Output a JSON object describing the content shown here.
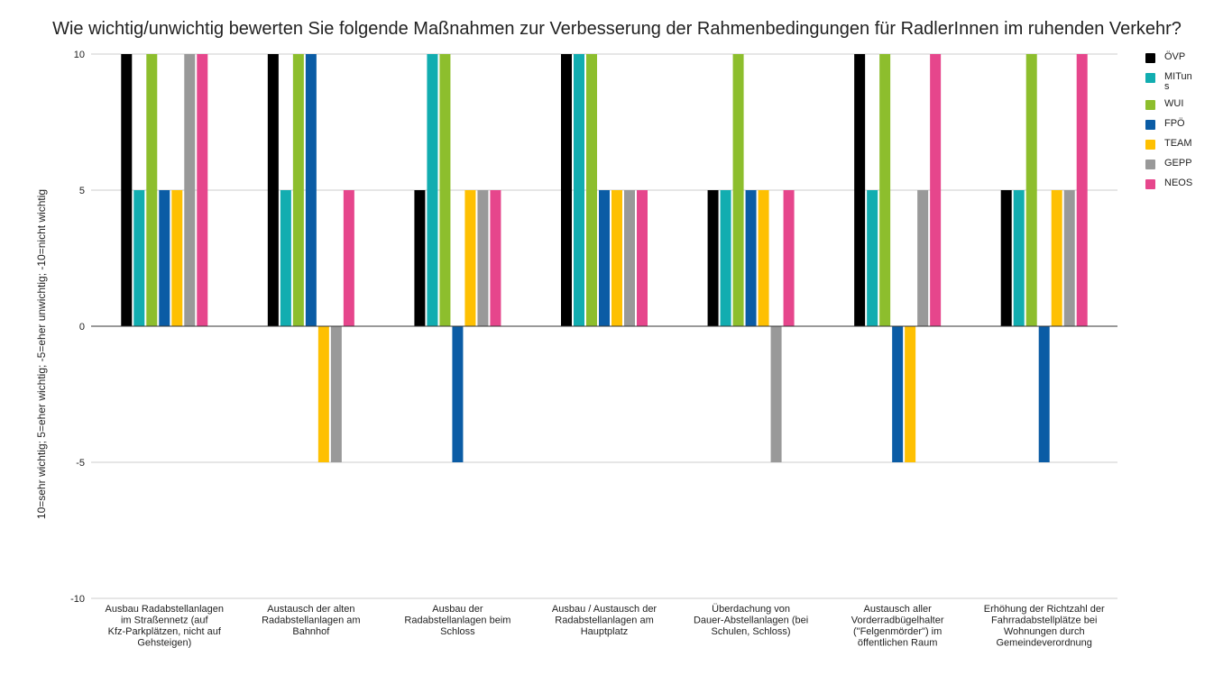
{
  "chart_data": {
    "type": "bar",
    "title": "Wie wichtig/unwichtig bewerten Sie folgende Maßnahmen zur Verbesserung der Rahmenbedingungen für RadlerInnen im ruhenden Verkehr?",
    "xlabel": "",
    "ylabel": "10=sehr wichtig; 5=eher wichtig; -5=eher unwichtig; -10=nicht wichtig",
    "ylim": [
      -10,
      10
    ],
    "yticks": [
      "10",
      "5",
      "0",
      "-5",
      "-10"
    ],
    "grid": true,
    "legend_position": "right",
    "categories": [
      "Ausbau Radabstellanlagen im Straßennetz (auf Kfz-Parkplätzen, nicht auf Gehsteigen)",
      "Austausch der alten Radabstellanlagen am Bahnhof",
      "Ausbau der Radabstellanlagen beim Schloss",
      "Ausbau / Austausch der Radabstellanlagen am Hauptplatz",
      "Überdachung von Dauer-Abstellanlagen (bei Schulen, Schloss)",
      "Austausch aller Vorderradbügelhalter (\"Felgenmörder\") im öffentlichen Raum",
      "Erhöhung der Richtzahl der Fahrradabstellplätze bei Wohnungen durch Gemeindeverordnung"
    ],
    "series": [
      {
        "name": "ÖVP",
        "color": "#000000",
        "values": [
          10,
          10,
          5,
          10,
          5,
          10,
          5
        ]
      },
      {
        "name": "MITuns",
        "color": "#12ADB0",
        "values": [
          5,
          5,
          10,
          10,
          5,
          5,
          5
        ]
      },
      {
        "name": "WUI",
        "color": "#8DBE2D",
        "values": [
          10,
          10,
          10,
          10,
          10,
          10,
          10
        ]
      },
      {
        "name": "FPÖ",
        "color": "#0B5CA5",
        "values": [
          5,
          10,
          -5,
          5,
          5,
          -5,
          -5
        ]
      },
      {
        "name": "TEAM",
        "color": "#FEC002",
        "values": [
          5,
          -5,
          5,
          5,
          5,
          -5,
          5
        ]
      },
      {
        "name": "GEPP",
        "color": "#999999",
        "values": [
          10,
          -5,
          5,
          5,
          -5,
          5,
          5
        ]
      },
      {
        "name": "NEOS",
        "color": "#E6468C",
        "values": [
          10,
          5,
          5,
          5,
          5,
          10,
          10
        ]
      }
    ]
  }
}
